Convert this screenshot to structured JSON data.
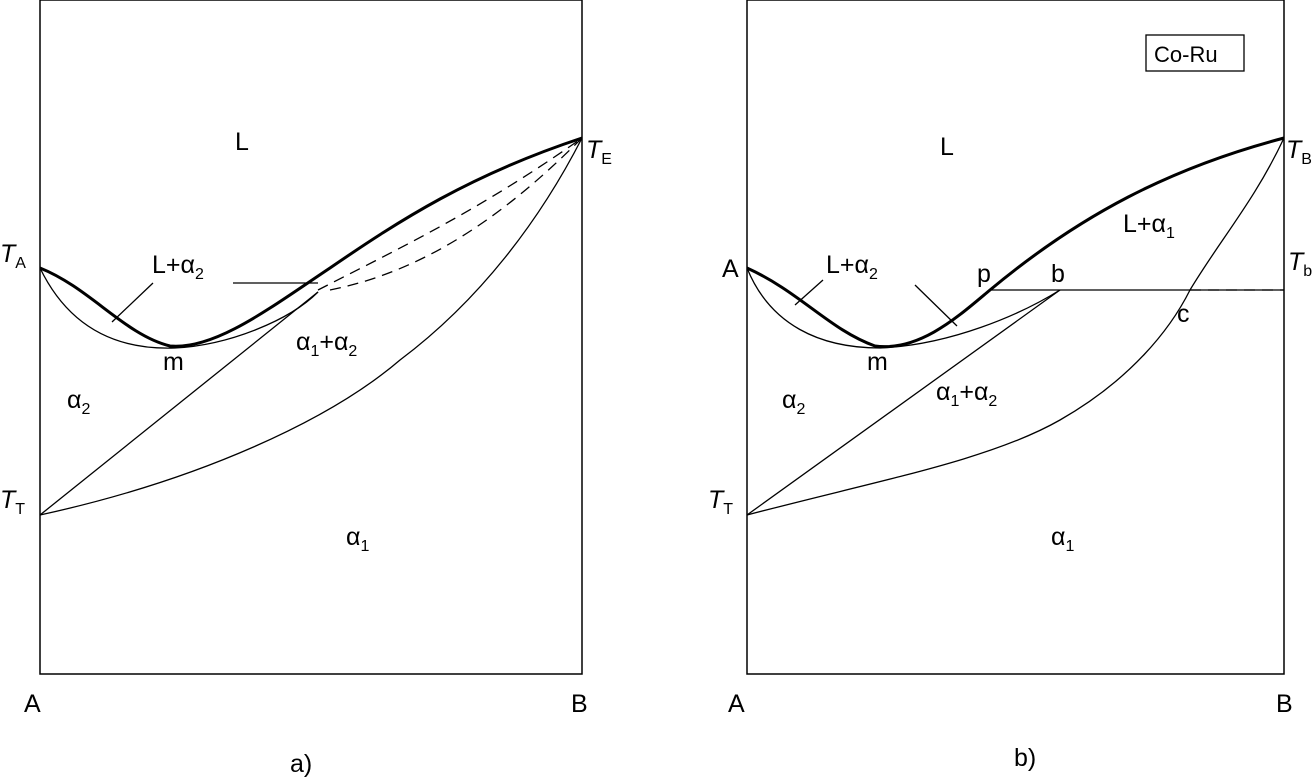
{
  "diagram_a": {
    "caption": "a)",
    "x_left": "A",
    "x_right": "B",
    "temp_A": {
      "main": "T",
      "sub": "A"
    },
    "temp_E": {
      "main": "T",
      "sub": "E"
    },
    "temp_T": {
      "main": "T",
      "sub": "T"
    },
    "region_L": "L",
    "region_L_alpha2": {
      "prefix": "L+α",
      "sub": "2"
    },
    "region_alpha2": {
      "main": "α",
      "sub": "2"
    },
    "region_alpha1": {
      "main": "α",
      "sub": "1"
    },
    "region_alpha1_alpha2": {
      "a": "α",
      "a_sub": "1",
      "plus": "+α",
      "b_sub": "2"
    },
    "point_m": "m"
  },
  "diagram_b": {
    "caption": "b)",
    "system_label": "Co-Ru",
    "x_left": "A",
    "x_right": "B",
    "temp_A": "A",
    "temp_B": {
      "main": "T",
      "sub": "B"
    },
    "temp_b": {
      "main": "T",
      "sub": "b"
    },
    "temp_T": {
      "main": "T",
      "sub": "T"
    },
    "region_L": "L",
    "region_L_alpha2": {
      "prefix": "L+α",
      "sub": "2"
    },
    "region_L_alpha1": {
      "prefix": "L+α",
      "sub": "1"
    },
    "region_alpha2": {
      "main": "α",
      "sub": "2"
    },
    "region_alpha1": {
      "main": "α",
      "sub": "1"
    },
    "region_alpha1_alpha2": {
      "a": "α",
      "a_sub": "1",
      "plus": "+α",
      "b_sub": "2"
    },
    "point_m": "m",
    "point_p": "p",
    "point_b": "b",
    "point_c": "c"
  }
}
